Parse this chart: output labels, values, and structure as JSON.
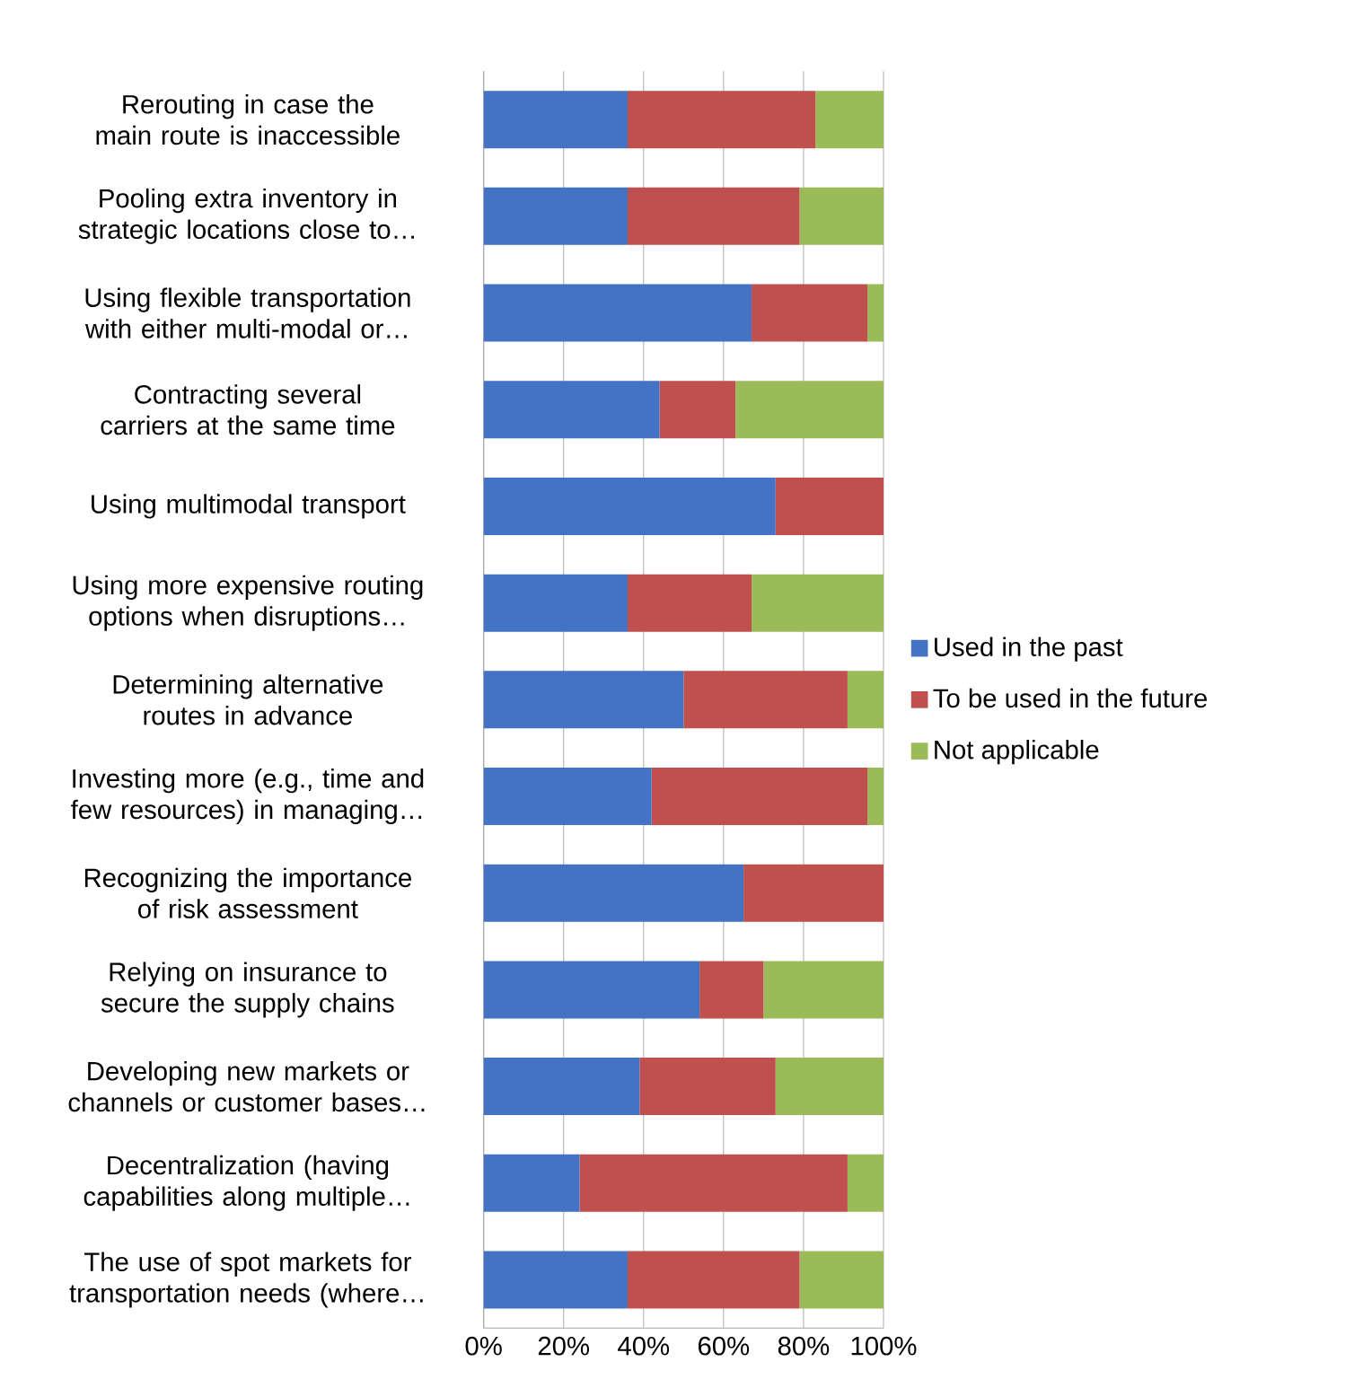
{
  "chart_data": {
    "type": "bar",
    "orientation": "horizontal",
    "stacked": true,
    "categories": [
      "Rerouting in case the main route is inaccessible",
      "Pooling extra inventory in strategic locations close to…",
      "Using flexible transportation with either multi-modal or…",
      "Contracting several carriers at the same time",
      "Using multimodal transport",
      "Using more expensive routing options when disruptions…",
      "Determining alternative routes in advance",
      "Investing more (e.g., time and few resources) in managing…",
      "Recognizing the importance of risk assessment",
      "Relying on insurance to secure the supply chains",
      "Developing new markets or channels or customer bases…",
      "Decentralization (having capabilities along multiple…",
      "The use of spot markets for transportation needs (where…"
    ],
    "series": [
      {
        "name": "Used in the past",
        "color": "#4472c4",
        "values": [
          36,
          36,
          67,
          44,
          73,
          36,
          50,
          42,
          65,
          54,
          39,
          24,
          36
        ]
      },
      {
        "name": "To be used in the future",
        "color": "#c0504d",
        "values": [
          47,
          43,
          29,
          19,
          27,
          31,
          41,
          54,
          35,
          16,
          34,
          67,
          43
        ]
      },
      {
        "name": "Not applicable",
        "color": "#9bbb59",
        "values": [
          17,
          21,
          4,
          37,
          0,
          33,
          9,
          4,
          0,
          30,
          27,
          9,
          21
        ]
      }
    ],
    "xlim": [
      0,
      100
    ],
    "xticks": [
      {
        "value": 0,
        "label": "0%"
      },
      {
        "value": 20,
        "label": "20%"
      },
      {
        "value": 40,
        "label": "40%"
      },
      {
        "value": 60,
        "label": "60%"
      },
      {
        "value": 80,
        "label": "80%"
      },
      {
        "value": 100,
        "label": "100%"
      }
    ],
    "grid": "x",
    "legend": "right"
  }
}
